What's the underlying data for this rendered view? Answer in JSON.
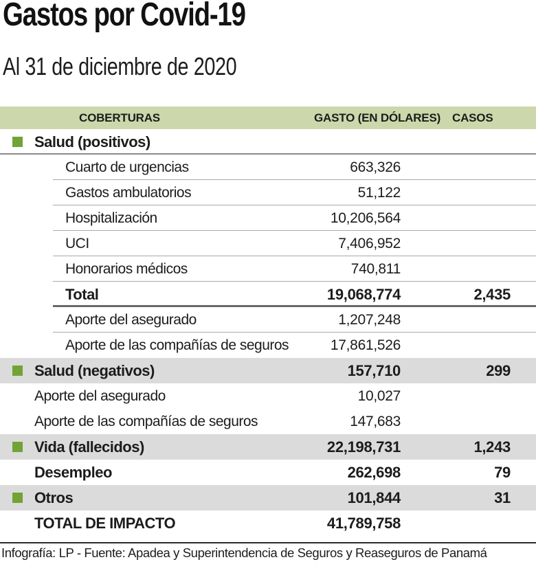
{
  "title": "Gastos por Covid-19",
  "subtitle": "Al 31 de diciembre de 2020",
  "footer": "Infografía: LP - Fuente: Apadea y Superintendencia de Seguros y Reaseguros de Panamá",
  "colors": {
    "header_band": "#ccd8ab",
    "row_stripe": "#dbdbdb",
    "bullet_green": "#71a336",
    "thin_line": "#a8a8a8",
    "medium_line": "#8a8a8a",
    "thick_line": "#696969",
    "footer_line": "#2b2b2b",
    "text": "#1c1c1c"
  },
  "columns": [
    "COBERTURAS",
    "GASTO (EN DÓLARES)",
    "CASOS"
  ],
  "rows": [
    {
      "label": "Salud (positivos)",
      "gasto": "",
      "casos": "",
      "bold": true,
      "bullet": true,
      "indent": "section",
      "bg": "white",
      "line": "full"
    },
    {
      "label": "Cuarto de urgencias",
      "gasto": "663,326",
      "casos": "",
      "bold": false,
      "bullet": false,
      "indent": "sub",
      "bg": "white",
      "line": "thin"
    },
    {
      "label": "Gastos ambulatorios",
      "gasto": "51,122",
      "casos": "",
      "bold": false,
      "bullet": false,
      "indent": "sub",
      "bg": "white",
      "line": "thin"
    },
    {
      "label": "Hospitalización",
      "gasto": "10,206,564",
      "casos": "",
      "bold": false,
      "bullet": false,
      "indent": "sub",
      "bg": "white",
      "line": "thin"
    },
    {
      "label": "UCI",
      "gasto": "7,406,952",
      "casos": "",
      "bold": false,
      "bullet": false,
      "indent": "sub",
      "bg": "white",
      "line": "thin"
    },
    {
      "label": "Honorarios médicos",
      "gasto": "740,811",
      "casos": "",
      "bold": false,
      "bullet": false,
      "indent": "sub",
      "bg": "white",
      "line": "thin"
    },
    {
      "label": "Total",
      "gasto": "19,068,774",
      "casos": "2,435",
      "bold": true,
      "bullet": false,
      "indent": "sub",
      "bg": "white",
      "line": "thick"
    },
    {
      "label": "Aporte del asegurado",
      "gasto": "1,207,248",
      "casos": "",
      "bold": false,
      "bullet": false,
      "indent": "sub",
      "bg": "white",
      "line": "thin"
    },
    {
      "label": "Aporte de las compañías de seguros",
      "gasto": "17,861,526",
      "casos": "",
      "bold": false,
      "bullet": false,
      "indent": "sub",
      "bg": "white",
      "line": "none"
    },
    {
      "label": "Salud (negativos)",
      "gasto": "157,710",
      "casos": "299",
      "bold": true,
      "bullet": true,
      "indent": "section",
      "bg": "gray",
      "line": "none"
    },
    {
      "label": "Aporte del asegurado",
      "gasto": "10,027",
      "casos": "",
      "bold": false,
      "bullet": false,
      "indent": "section",
      "bg": "white",
      "line": "none"
    },
    {
      "label": "Aporte de las compañías de seguros",
      "gasto": "147,683",
      "casos": "",
      "bold": false,
      "bullet": false,
      "indent": "section",
      "bg": "white",
      "line": "none"
    },
    {
      "label": "Vida (fallecidos)",
      "gasto": "22,198,731",
      "casos": "1,243",
      "bold": true,
      "bullet": true,
      "indent": "section",
      "bg": "gray",
      "line": "none"
    },
    {
      "label": "Desempleo",
      "gasto": "262,698",
      "casos": "79",
      "bold": true,
      "bullet": false,
      "indent": "section",
      "bg": "white",
      "line": "none"
    },
    {
      "label": "Otros",
      "gasto": "101,844",
      "casos": "31",
      "bold": true,
      "bullet": true,
      "indent": "section",
      "bg": "gray",
      "line": "none"
    },
    {
      "label": "TOTAL DE IMPACTO",
      "gasto": "41,789,758",
      "casos": "",
      "bold": true,
      "bullet": false,
      "indent": "section",
      "bg": "white",
      "line": "none"
    }
  ],
  "chart_data": {
    "type": "table",
    "title": "Gastos por Covid-19",
    "subtitle": "Al 31 de diciembre de 2020",
    "columns": [
      "COBERTURAS",
      "GASTO (EN DÓLARES)",
      "CASOS"
    ],
    "rows": [
      {
        "cobertura": "Salud (positivos)",
        "gasto": null,
        "casos": null
      },
      {
        "cobertura": "Cuarto de urgencias",
        "gasto": 663326,
        "casos": null
      },
      {
        "cobertura": "Gastos ambulatorios",
        "gasto": 51122,
        "casos": null
      },
      {
        "cobertura": "Hospitalización",
        "gasto": 10206564,
        "casos": null
      },
      {
        "cobertura": "UCI",
        "gasto": 7406952,
        "casos": null
      },
      {
        "cobertura": "Honorarios médicos",
        "gasto": 740811,
        "casos": null
      },
      {
        "cobertura": "Total (Salud positivos)",
        "gasto": 19068774,
        "casos": 2435
      },
      {
        "cobertura": "Aporte del asegurado (positivos)",
        "gasto": 1207248,
        "casos": null
      },
      {
        "cobertura": "Aporte de las compañías de seguros (positivos)",
        "gasto": 17861526,
        "casos": null
      },
      {
        "cobertura": "Salud (negativos)",
        "gasto": 157710,
        "casos": 299
      },
      {
        "cobertura": "Aporte del asegurado (negativos)",
        "gasto": 10027,
        "casos": null
      },
      {
        "cobertura": "Aporte de las compañías de seguros (negativos)",
        "gasto": 147683,
        "casos": null
      },
      {
        "cobertura": "Vida (fallecidos)",
        "gasto": 22198731,
        "casos": 1243
      },
      {
        "cobertura": "Desempleo",
        "gasto": 262698,
        "casos": 79
      },
      {
        "cobertura": "Otros",
        "gasto": 101844,
        "casos": 31
      },
      {
        "cobertura": "TOTAL DE IMPACTO",
        "gasto": 41789758,
        "casos": null
      }
    ]
  }
}
